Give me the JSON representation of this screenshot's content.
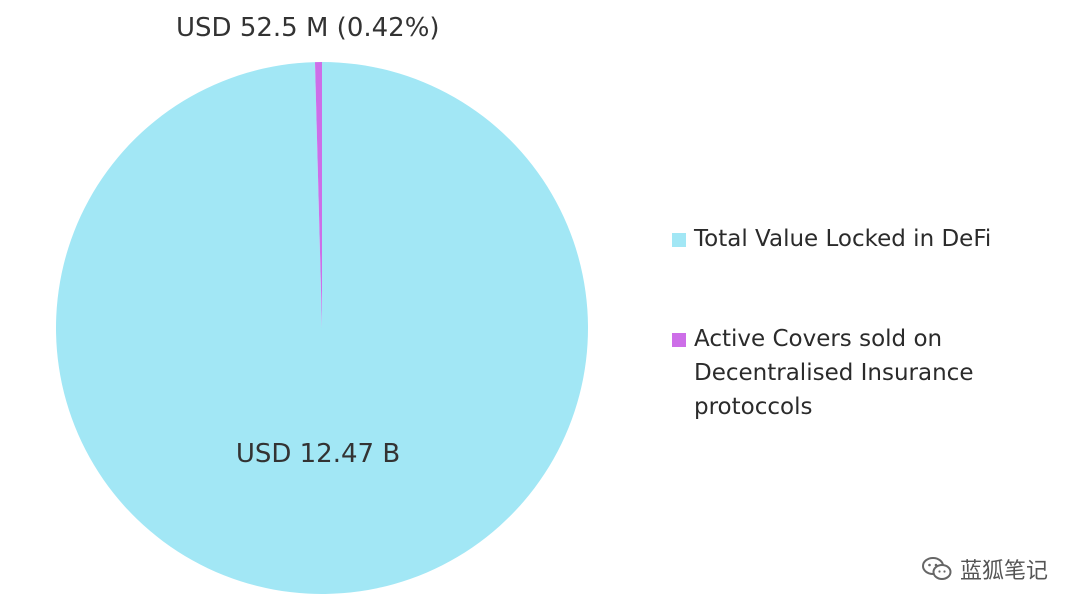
{
  "chart_data": {
    "type": "pie",
    "slices": [
      {
        "name": "Total Value Locked in DeFi",
        "value": 12470,
        "label": "USD 12.47 B",
        "color": "#a2e7f5"
      },
      {
        "name": "Active Covers sold on Decentralised Insurance protoccols",
        "value": 52.5,
        "label": "USD 52.5 M  (0.42%)",
        "color": "#cd6ee8"
      }
    ],
    "legend": {
      "position": "right",
      "items": [
        "Total Value Locked in DeFi",
        "Active Covers sold on Decentralised Insurance protoccols"
      ]
    }
  },
  "watermark": {
    "text": "蓝狐笔记",
    "icon": "wechat-icon"
  }
}
